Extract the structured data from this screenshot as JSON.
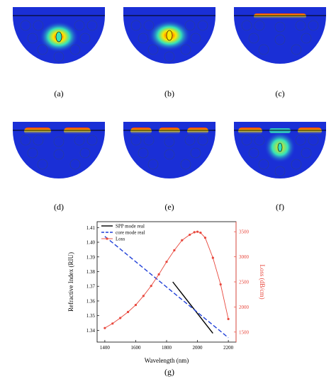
{
  "panel_labels": [
    "(a)",
    "(b)",
    "(c)",
    "(d)",
    "(e)",
    "(f)",
    "(g)"
  ],
  "colors": {
    "field_bg": "#1a2fd6",
    "field_deep": "#0b15b8",
    "hot": "#ff2a00",
    "warm": "#ffe600",
    "mid": "#35e3b8",
    "black_series": "#000000",
    "blue_series": "#1f3fd8",
    "red_series": "#e8473c"
  },
  "chart_data": {
    "type": "line",
    "xlabel": "Wavelength (nm)",
    "ylabel": "Refractive Index (RIU)",
    "y2label": "Loss (dB/cm)",
    "x_ticks": [
      1400,
      1600,
      1800,
      2000,
      2200
    ],
    "y_ticks": [
      "1.34",
      "1.35",
      "1.36",
      "1.37",
      "1.38",
      "1.39",
      "1.40",
      "1.41"
    ],
    "y2_ticks": [
      1500,
      2000,
      2500,
      3000,
      3500
    ],
    "xlim": [
      1350,
      2250
    ],
    "ylim": [
      1.332,
      1.414
    ],
    "y2lim": [
      1300,
      3700
    ],
    "legend_position": "top-left",
    "series": [
      {
        "name": "SPP mode real",
        "axis": "left",
        "x": [
          1840,
          2100
        ],
        "y": [
          1.373,
          1.338
        ]
      },
      {
        "name": "core mode real",
        "axis": "left",
        "x": [
          1400,
          2200
        ],
        "y": [
          1.404,
          1.335
        ]
      },
      {
        "name": "Loss",
        "axis": "right",
        "x": [
          1400,
          1450,
          1500,
          1550,
          1600,
          1650,
          1700,
          1750,
          1800,
          1850,
          1900,
          1950,
          1980,
          2000,
          2020,
          2050,
          2100,
          2150,
          2200
        ],
        "y": [
          1580,
          1670,
          1780,
          1900,
          2040,
          2220,
          2420,
          2650,
          2900,
          3130,
          3330,
          3440,
          3490,
          3500,
          3480,
          3380,
          2980,
          2450,
          1760
        ]
      }
    ]
  }
}
